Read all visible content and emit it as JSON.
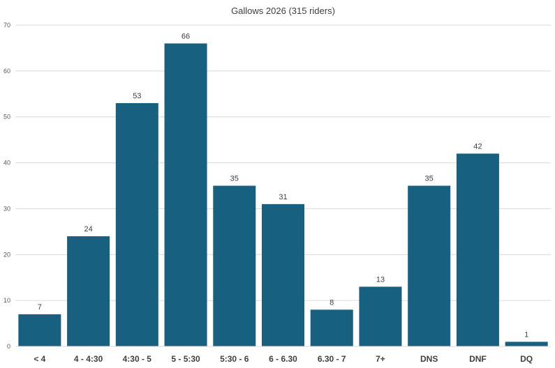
{
  "chart_data": {
    "type": "bar",
    "title": "Gallows 2026 (315 riders)",
    "categories": [
      "< 4",
      "4 - 4:30",
      "4:30 - 5",
      "5 - 5:30",
      "5:30 - 6",
      "6 - 6.30",
      "6.30 - 7",
      "7+",
      "DNS",
      "DNF",
      "DQ"
    ],
    "series": [
      {
        "values": [
          7,
          24,
          53,
          66,
          35,
          31,
          8,
          13,
          35,
          42,
          1
        ],
        "color": "#17607f"
      }
    ],
    "ylim": [
      0,
      70
    ],
    "yticks": [
      0,
      10,
      20,
      30,
      40,
      50,
      60,
      70
    ],
    "grid": true,
    "legend": "none",
    "data_labels": true
  }
}
